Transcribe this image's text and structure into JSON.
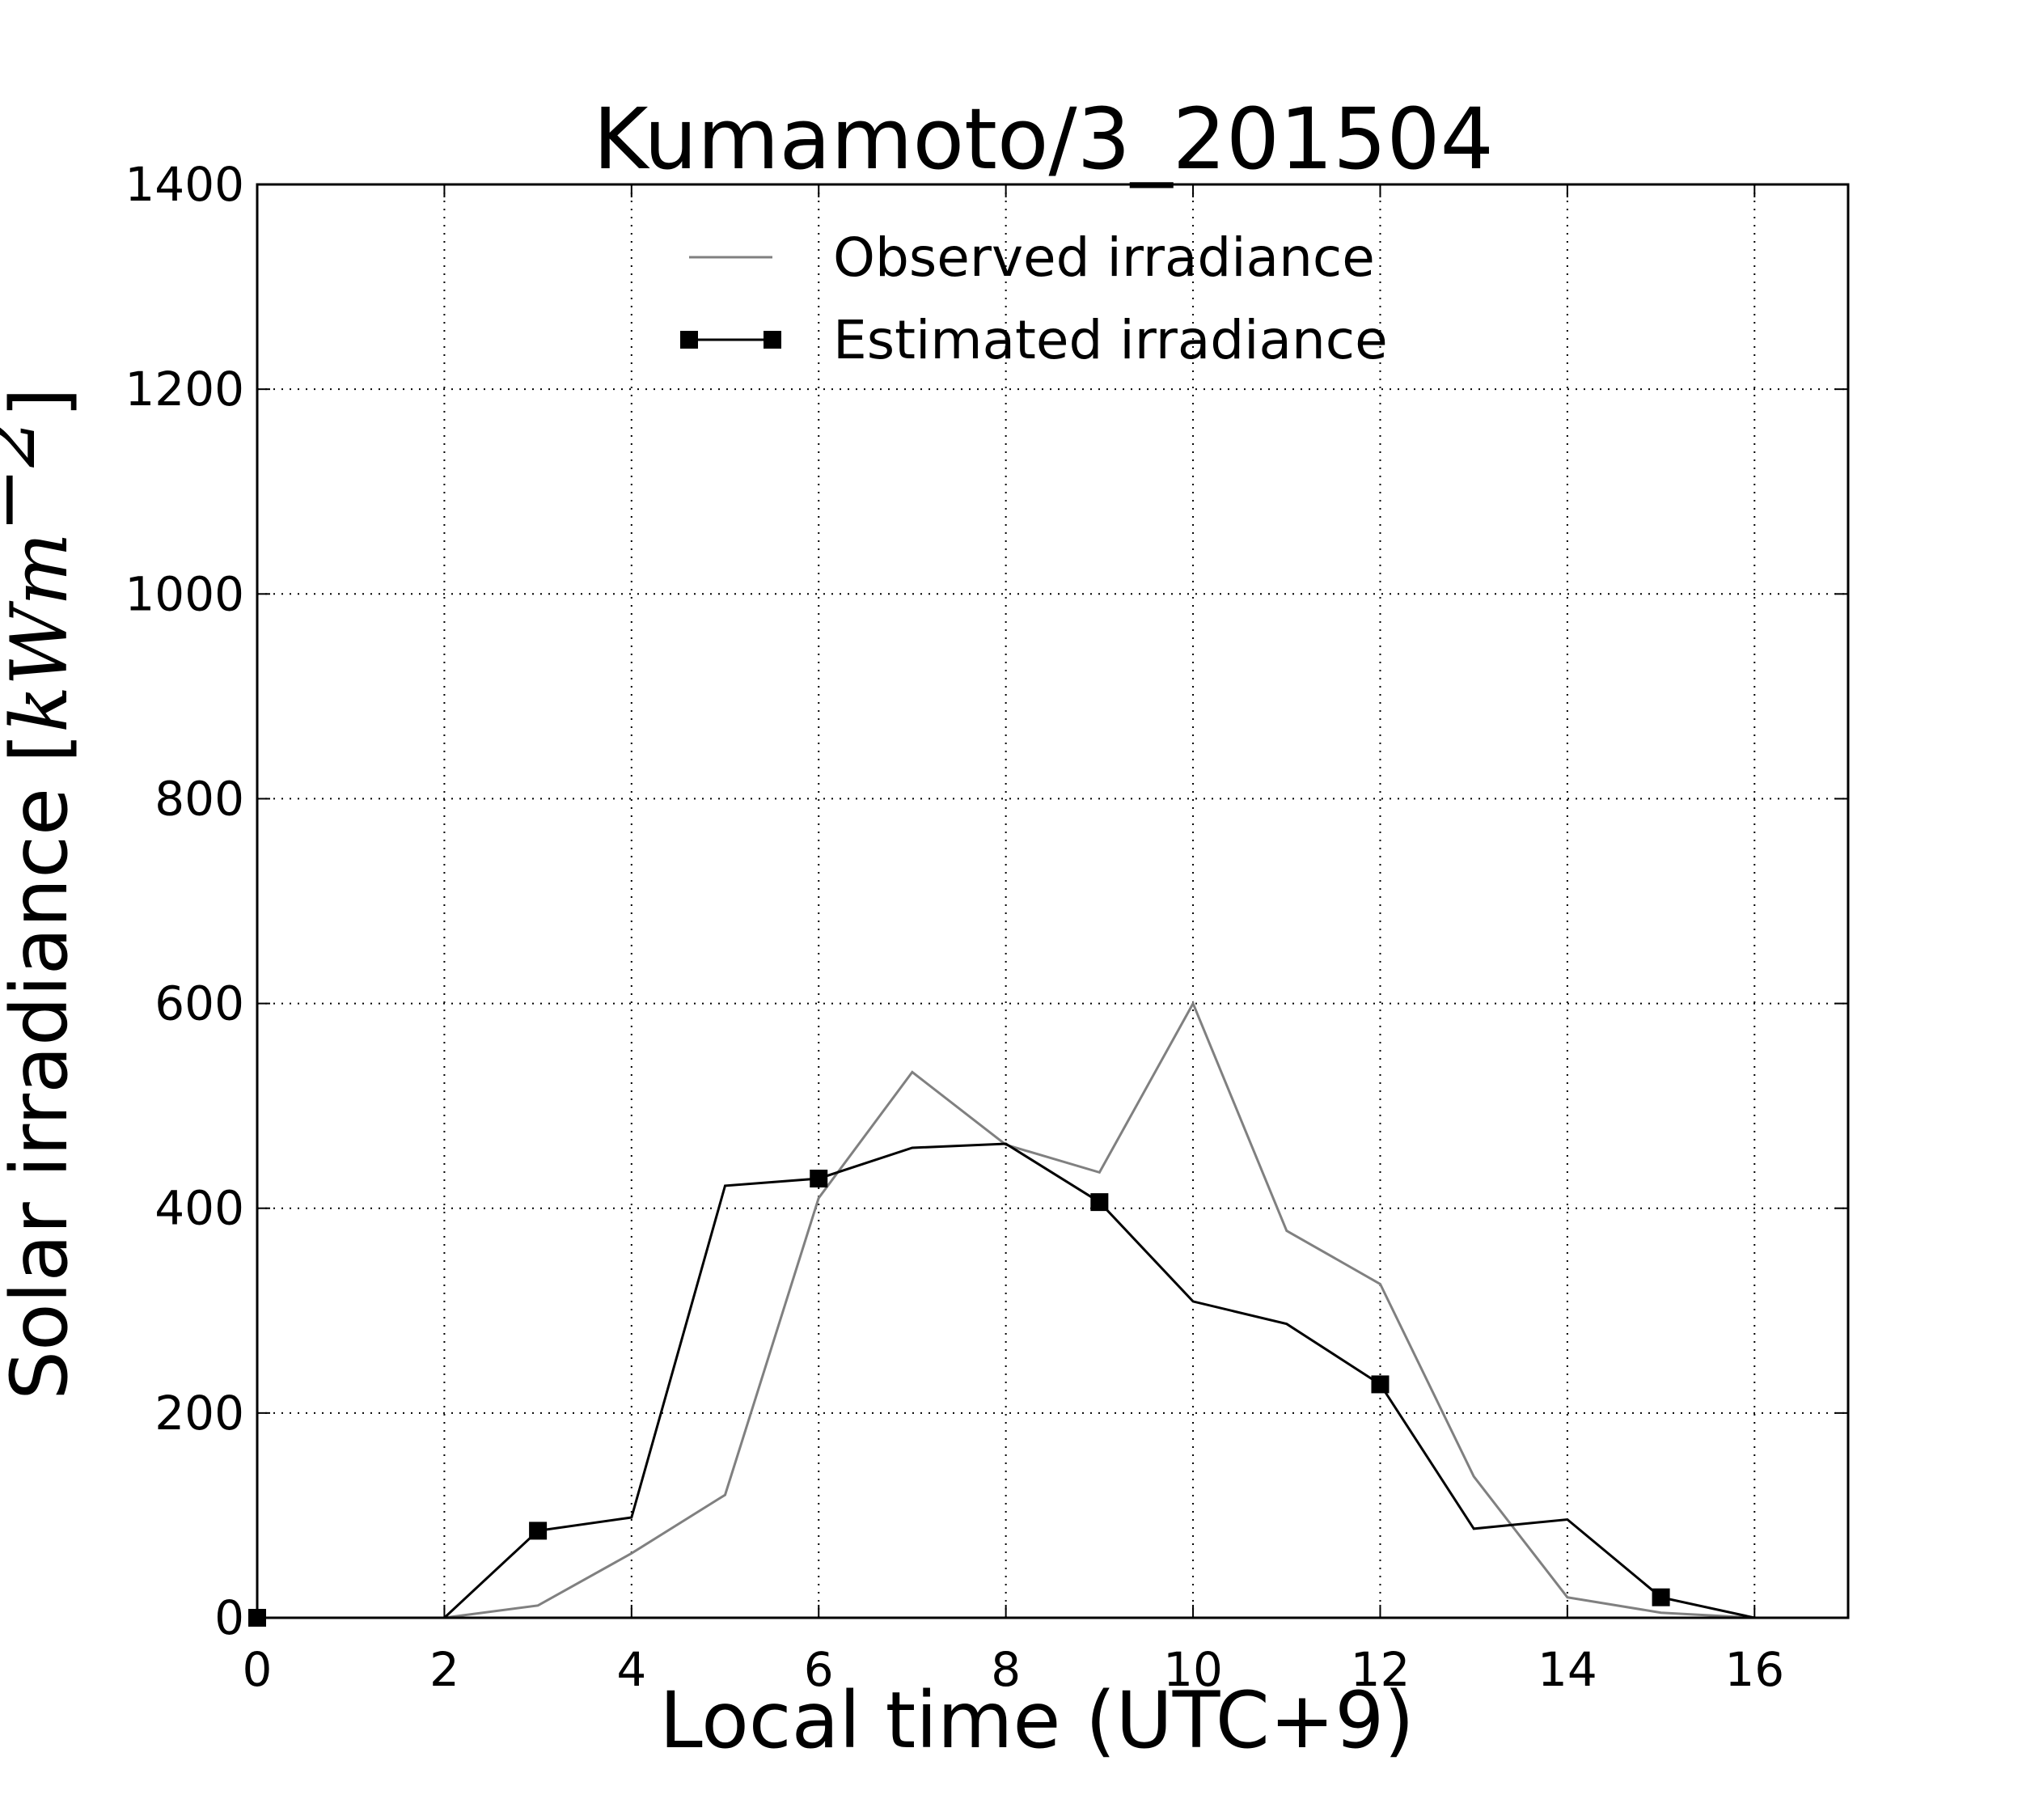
{
  "chart_data": {
    "type": "line",
    "title": "Kumamoto/3_201504",
    "xlabel": "Local time (UTC+9)",
    "ylabel": "Solar irradiance [kWm⁻²]",
    "ylabel_text": "Solar irradiance [",
    "ylabel_math_unit": "kWm",
    "ylabel_math_exponent": "−2",
    "ylabel_close": "]",
    "xlim": [
      0,
      17
    ],
    "ylim": [
      0,
      1400
    ],
    "xticks": [
      "0",
      "2",
      "4",
      "6",
      "8",
      "10",
      "12",
      "14",
      "16"
    ],
    "yticks": [
      "0",
      "200",
      "400",
      "600",
      "800",
      "1000",
      "1200",
      "1400"
    ],
    "grid": true,
    "legend_position": "top-center",
    "series": [
      {
        "name": "Observed irradiance",
        "color": "#808080",
        "marker": "none",
        "x": [
          0,
          1,
          2,
          3,
          4,
          5,
          6,
          7,
          8,
          9,
          10,
          11,
          12,
          13,
          14,
          15,
          16,
          17
        ],
        "y": [
          0,
          0,
          0,
          12,
          63,
          120,
          410,
          533,
          462,
          435,
          600,
          378,
          326,
          138,
          20,
          5,
          0,
          0
        ]
      },
      {
        "name": "Estimated irradiance",
        "color": "#000000",
        "marker": "square",
        "marker_every": 3,
        "x": [
          0,
          1,
          2,
          3,
          4,
          5,
          6,
          7,
          8,
          9,
          10,
          11,
          12,
          13,
          14,
          15,
          16,
          17
        ],
        "y": [
          0,
          0,
          0,
          85,
          98,
          422,
          429,
          459,
          463,
          406,
          309,
          287,
          228,
          87,
          96,
          20,
          0,
          0
        ]
      }
    ]
  }
}
